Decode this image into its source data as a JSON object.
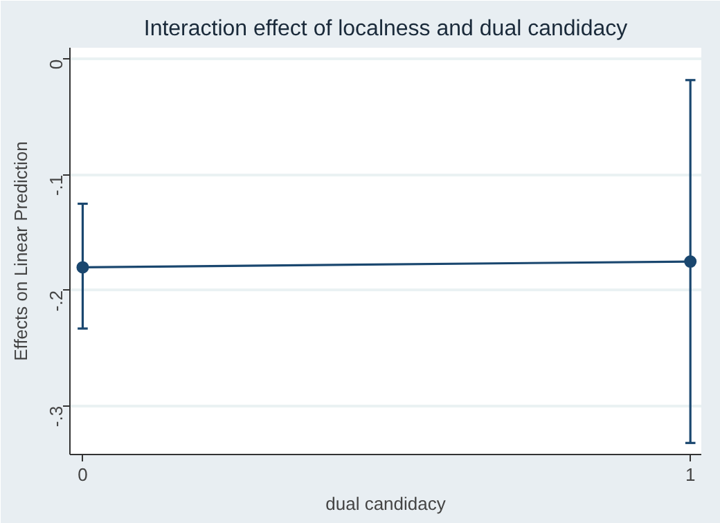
{
  "chart_data": {
    "type": "line",
    "title": "Interaction effect of localness and dual candidacy",
    "xlabel": "dual candidacy",
    "ylabel": "Effects on Linear Prediction",
    "x": [
      0,
      1
    ],
    "series": [
      {
        "color": "#1a476f",
        "values": [
          -0.18,
          -0.175
        ],
        "errors": [
          [
            -0.233,
            -0.125
          ],
          [
            -0.332,
            -0.018
          ]
        ]
      }
    ],
    "xlim": [
      -0.021,
      1.018
    ],
    "xticks": [
      0,
      1
    ],
    "ylim": [
      -0.342,
      0.01
    ],
    "yticks": [
      0,
      {
        "value": -0.1,
        "label": "-.1"
      },
      {
        "value": -0.2,
        "label": "-.2"
      },
      {
        "value": -0.3,
        "label": "-.3"
      }
    ],
    "grid": "y",
    "marker": "circle",
    "line_style": "solid"
  }
}
